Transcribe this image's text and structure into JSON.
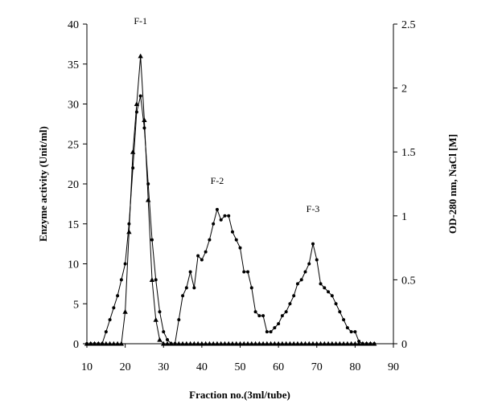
{
  "chart_data": {
    "type": "line",
    "title": "",
    "xlabel": "Fraction no.(3ml/tube)",
    "ylabel_left": "Enzyme activity (Unit/ml)",
    "ylabel_right": "OD-280 nm, NaCl [M]",
    "xlim": [
      10,
      90
    ],
    "ylim_left": [
      0,
      40
    ],
    "ylim_right": [
      0,
      2.5
    ],
    "x_ticks": [
      10,
      20,
      30,
      40,
      50,
      60,
      70,
      80,
      90
    ],
    "y_left_ticks": [
      0,
      5,
      10,
      15,
      20,
      25,
      30,
      35,
      40
    ],
    "y_right_ticks": [
      "0",
      "0.5",
      "1",
      "1.5",
      "2",
      "2.5"
    ],
    "grid": false,
    "annotations": [
      {
        "text": "F-1",
        "x": 24,
        "y": 40
      },
      {
        "text": "F-2",
        "x": 44,
        "y": 20
      },
      {
        "text": "F-3",
        "x": 69,
        "y": 16.5
      }
    ],
    "series": [
      {
        "axis": "left",
        "marker": "triangle",
        "x": [
          10,
          11,
          12,
          13,
          14,
          15,
          16,
          17,
          18,
          19,
          20,
          21,
          22,
          23,
          24,
          25,
          26,
          27,
          28,
          29,
          30,
          31,
          32,
          33,
          34,
          35,
          36,
          37,
          38,
          39,
          40,
          41,
          42,
          43,
          44,
          45,
          46,
          47,
          48,
          49,
          50,
          51,
          52,
          53,
          54,
          55,
          56,
          57,
          58,
          59,
          60,
          61,
          62,
          63,
          64,
          65,
          66,
          67,
          68,
          69,
          70,
          71,
          72,
          73,
          74,
          75,
          76,
          77,
          78,
          79,
          80,
          81,
          82,
          83,
          84,
          85
        ],
        "y": [
          0,
          0,
          0,
          0,
          0,
          0,
          0,
          0,
          0,
          0,
          4,
          14,
          24,
          30,
          36,
          28,
          18,
          8,
          3,
          0.5,
          0,
          0,
          0,
          0,
          0,
          0,
          0,
          0,
          0,
          0,
          0,
          0,
          0,
          0,
          0,
          0,
          0,
          0,
          0,
          0,
          0,
          0,
          0,
          0,
          0,
          0,
          0,
          0,
          0,
          0,
          0,
          0,
          0,
          0,
          0,
          0,
          0,
          0,
          0,
          0,
          0,
          0,
          0,
          0,
          0,
          0,
          0,
          0,
          0,
          0,
          0,
          0,
          0,
          0,
          0,
          0
        ]
      },
      {
        "axis": "left",
        "marker": "dot",
        "x": [
          10,
          11,
          12,
          13,
          14,
          15,
          16,
          17,
          18,
          19,
          20,
          21,
          22,
          23,
          24,
          25,
          26,
          27,
          28,
          29,
          30,
          31,
          32,
          33,
          34,
          35,
          36,
          37,
          38,
          39,
          40,
          41,
          42,
          43,
          44,
          45,
          46,
          47,
          48,
          49,
          50,
          51,
          52,
          53,
          54,
          55,
          56,
          57,
          58,
          59,
          60,
          61,
          62,
          63,
          64,
          65,
          66,
          67,
          68,
          69,
          70,
          71,
          72,
          73,
          74,
          75,
          76,
          77,
          78,
          79,
          80,
          81,
          82,
          83,
          84,
          85
        ],
        "y": [
          0,
          0,
          0,
          0,
          0,
          1.5,
          3,
          4.5,
          6,
          8,
          10,
          15,
          22,
          29,
          31,
          27,
          20,
          13,
          8,
          4,
          1.5,
          0.5,
          0,
          0,
          3,
          6,
          7,
          9,
          7,
          11,
          10.5,
          11.5,
          13,
          15,
          16.8,
          15.5,
          16,
          16,
          14,
          13,
          12,
          9,
          9,
          7,
          4,
          3.5,
          3.5,
          1.5,
          1.5,
          2,
          2.5,
          3.5,
          4,
          5,
          6,
          7.5,
          8,
          9,
          10,
          12.5,
          10.5,
          7.5,
          7,
          6.5,
          6,
          5,
          4,
          3,
          2,
          1.5,
          1.5,
          0.3,
          0,
          0,
          0,
          0
        ]
      }
    ]
  }
}
